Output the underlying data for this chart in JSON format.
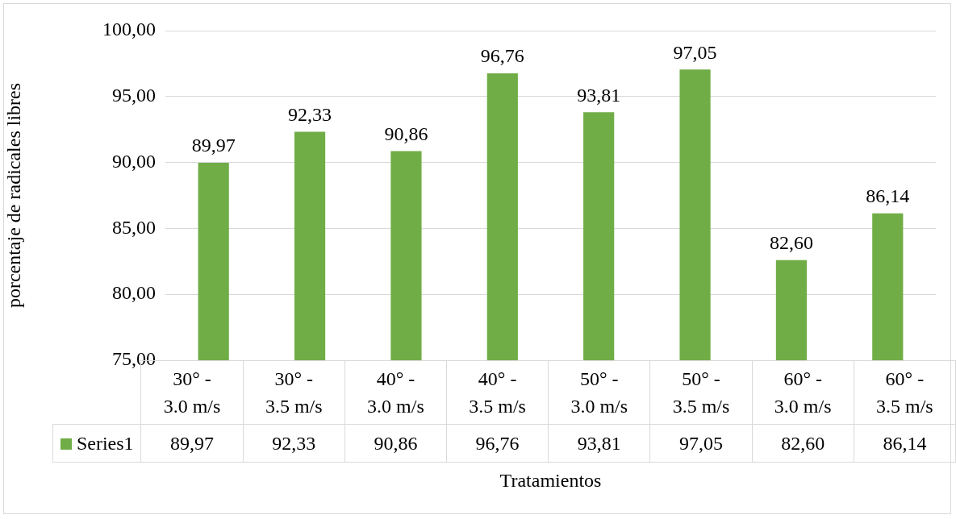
{
  "chart_data": {
    "type": "bar",
    "xlabel": "Tratamientos",
    "ylabel": "porcentaje de radicales libres",
    "categories": [
      "30° - 3.0 m/s",
      "30° - 3.5 m/s",
      "40° - 3.0 m/s",
      "40° - 3.5 m/s",
      "50° - 3.0 m/s",
      "50° - 3.5 m/s",
      "60° - 3.0 m/s",
      "60° - 3.5 m/s"
    ],
    "series": [
      {
        "name": "Series1",
        "color": "#70ad47",
        "values": [
          89.97,
          92.33,
          90.86,
          96.76,
          93.81,
          97.05,
          82.6,
          86.14
        ],
        "value_labels": [
          "89,97",
          "92,33",
          "90,86",
          "96,76",
          "93,81",
          "97,05",
          "82,60",
          "86,14"
        ]
      }
    ],
    "ylim": [
      75,
      100
    ],
    "yticks": [
      {
        "value": 75,
        "label": "75,00"
      },
      {
        "value": 80,
        "label": "80,00"
      },
      {
        "value": 85,
        "label": "85,00"
      },
      {
        "value": 90,
        "label": "90,00"
      },
      {
        "value": 95,
        "label": "95,00"
      },
      {
        "value": 100,
        "label": "100,00"
      }
    ],
    "grid": "y",
    "legend": "bottom"
  }
}
